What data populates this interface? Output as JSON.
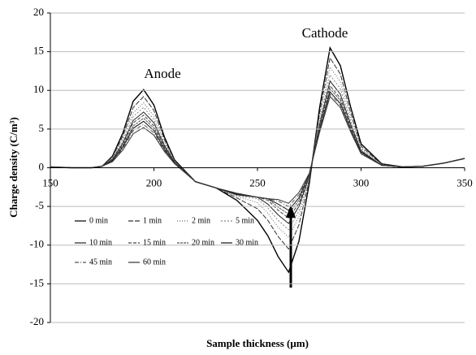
{
  "chart_data": {
    "type": "line",
    "xlabel": "Sample thickness (μm)",
    "ylabel": "Charge density (C/m³)",
    "annotations": [
      "Anode",
      "Cathode"
    ],
    "x": [
      150,
      160,
      170,
      175,
      180,
      185,
      190,
      195,
      200,
      205,
      210,
      220,
      230,
      240,
      250,
      255,
      260,
      265,
      270,
      275,
      280,
      285,
      290,
      295,
      300,
      310,
      320,
      330,
      340,
      350
    ],
    "series": [
      {
        "name": "0 min",
        "color": "#000000",
        "dash": "none",
        "values": [
          0.1,
          0,
          0,
          0.2,
          1.5,
          4.5,
          8.6,
          10.1,
          8.1,
          4.0,
          1.0,
          -1.8,
          -2.6,
          -4.2,
          -6.8,
          -8.8,
          -11.5,
          -13.5,
          -9.5,
          -2.0,
          7.8,
          15.5,
          13.2,
          7.8,
          3.1,
          0.5,
          0.1,
          0.2,
          0.6,
          1.2
        ]
      },
      {
        "name": "1 min",
        "color": "#333333",
        "dash": "6 2",
        "values": [
          0.1,
          0,
          0,
          0.2,
          1.4,
          4.1,
          7.8,
          9.2,
          7.4,
          3.7,
          0.9,
          -1.8,
          -2.6,
          -3.9,
          -5.3,
          -6.8,
          -8.9,
          -10.5,
          -7.4,
          -1.6,
          7.1,
          14.2,
          12.1,
          7.1,
          2.8,
          0.4,
          0.1,
          0.2,
          0.6,
          1.2
        ]
      },
      {
        "name": "2 min",
        "color": "#666666",
        "dash": "1 2",
        "values": [
          0.1,
          0,
          0,
          0.2,
          1.3,
          3.8,
          7.1,
          8.4,
          6.7,
          3.4,
          0.8,
          -1.8,
          -2.6,
          -3.7,
          -4.5,
          -5.9,
          -7.7,
          -9.0,
          -6.3,
          -1.4,
          6.5,
          13.0,
          11.1,
          6.5,
          2.6,
          0.4,
          0.1,
          0.2,
          0.6,
          1.2
        ]
      },
      {
        "name": "5 min",
        "color": "#888888",
        "dash": "2 2",
        "values": [
          0.1,
          0,
          0,
          0.2,
          1.2,
          3.5,
          6.6,
          7.8,
          6.2,
          3.1,
          0.8,
          -1.8,
          -2.6,
          -3.6,
          -4.0,
          -5.2,
          -6.8,
          -8.0,
          -5.6,
          -1.2,
          6.0,
          12.0,
          10.2,
          6.0,
          2.4,
          0.4,
          0.1,
          0.2,
          0.6,
          1.2
        ]
      },
      {
        "name": "10 min",
        "color": "#222222",
        "dash": "none",
        "values": [
          0.1,
          0,
          0,
          0.2,
          1.1,
          3.2,
          6.1,
          7.2,
          5.8,
          2.9,
          0.7,
          -1.8,
          -2.6,
          -3.5,
          -3.8,
          -4.7,
          -6.1,
          -7.2,
          -5.0,
          -1.1,
          5.6,
          11.2,
          9.5,
          5.6,
          2.2,
          0.3,
          0.1,
          0.2,
          0.6,
          1.2
        ]
      },
      {
        "name": "15 min",
        "color": "#444444",
        "dash": "4 2",
        "values": [
          0.1,
          0,
          0,
          0.2,
          1.0,
          3.1,
          5.8,
          6.8,
          5.4,
          2.7,
          0.7,
          -1.8,
          -2.6,
          -3.5,
          -3.8,
          -4.2,
          -5.5,
          -6.5,
          -4.6,
          -1.0,
          5.3,
          10.6,
          9.0,
          5.3,
          2.1,
          0.3,
          0.1,
          0.2,
          0.6,
          1.2
        ]
      },
      {
        "name": "20 min",
        "color": "#555555",
        "dash": "3 1",
        "values": [
          0.1,
          0,
          0,
          0.2,
          1.0,
          2.9,
          5.4,
          6.4,
          5.1,
          2.6,
          0.6,
          -1.8,
          -2.6,
          -3.4,
          -3.8,
          -4.0,
          -5.1,
          -6.0,
          -4.2,
          -0.9,
          5.1,
          10.2,
          8.7,
          5.1,
          2.0,
          0.3,
          0.1,
          0.2,
          0.6,
          1.2
        ]
      },
      {
        "name": "30 min",
        "color": "#111111",
        "dash": "none",
        "values": [
          0.1,
          0,
          0,
          0.2,
          0.9,
          2.7,
          5.1,
          6.0,
          4.8,
          2.4,
          0.6,
          -1.8,
          -2.6,
          -3.4,
          -3.8,
          -4.0,
          -4.7,
          -5.5,
          -3.9,
          -0.8,
          4.9,
          9.8,
          8.3,
          4.9,
          2.0,
          0.3,
          0.1,
          0.2,
          0.6,
          1.2
        ]
      },
      {
        "name": "45 min",
        "color": "#555555",
        "dash": "5 2 1 2",
        "values": [
          0.1,
          0,
          0,
          0.2,
          0.8,
          2.5,
          4.8,
          5.6,
          4.5,
          2.2,
          0.6,
          -1.8,
          -2.6,
          -3.3,
          -3.8,
          -4.0,
          -4.3,
          -5.0,
          -3.5,
          -0.8,
          4.8,
          9.5,
          8.1,
          4.8,
          1.9,
          0.3,
          0.1,
          0.2,
          0.6,
          1.2
        ]
      },
      {
        "name": "60 min",
        "color": "#333333",
        "dash": "none",
        "values": [
          0.1,
          0,
          0,
          0.2,
          0.8,
          2.3,
          4.4,
          5.2,
          4.2,
          2.1,
          0.5,
          -1.8,
          -2.6,
          -3.3,
          -3.8,
          -4.0,
          -4.1,
          -4.6,
          -3.2,
          -0.7,
          4.6,
          9.2,
          7.8,
          4.6,
          1.8,
          0.3,
          0.1,
          0.2,
          0.6,
          1.2
        ]
      }
    ],
    "xlim": [
      150,
      350
    ],
    "xticks": [
      150,
      200,
      250,
      300,
      350
    ],
    "ylim": [
      -20,
      20
    ],
    "yticks": [
      -20,
      -15,
      -10,
      -5,
      0,
      5,
      10,
      15,
      20
    ],
    "grid": true,
    "legend": "lower left"
  }
}
